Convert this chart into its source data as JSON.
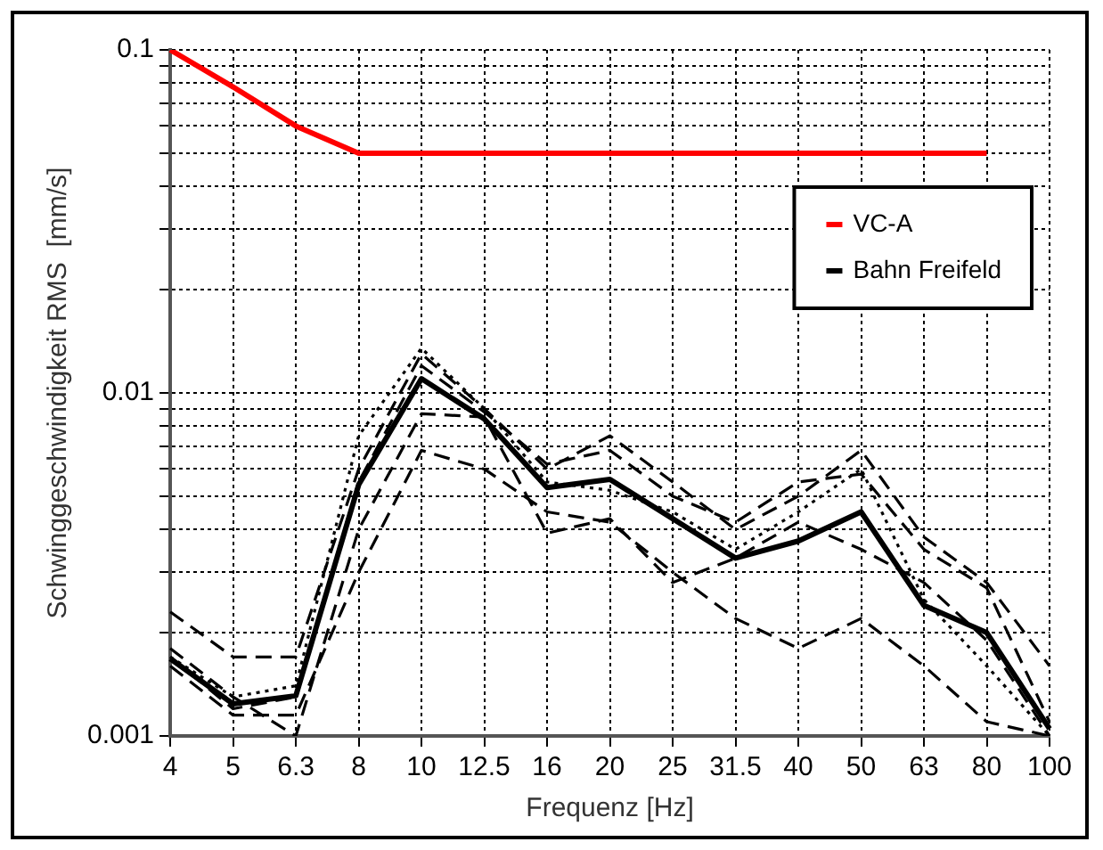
{
  "chart_data": {
    "type": "line",
    "xlabel": "Frequenz [Hz]",
    "ylabel": "Schwinggeschwindigkeit RMS  [mm/s]",
    "categories": [
      "4",
      "5",
      "6.3",
      "8",
      "10",
      "12.5",
      "16",
      "20",
      "25",
      "31.5",
      "40",
      "50",
      "63",
      "80",
      "100"
    ],
    "log": "y",
    "ylim": [
      0.001,
      0.1
    ],
    "yticks": [
      0.001,
      {
        "value": 0.002,
        "label": null
      },
      {
        "value": 0.003,
        "label": null
      },
      {
        "value": 0.004,
        "label": null
      },
      {
        "value": 0.005,
        "label": null
      },
      {
        "value": 0.006,
        "label": null
      },
      {
        "value": 0.007,
        "label": null
      },
      {
        "value": 0.008,
        "label": null
      },
      {
        "value": 0.009,
        "label": null
      },
      0.01,
      {
        "value": 0.02,
        "label": null
      },
      {
        "value": 0.03,
        "label": null
      },
      {
        "value": 0.04,
        "label": null
      },
      {
        "value": 0.05,
        "label": null
      },
      {
        "value": 0.06,
        "label": null
      },
      {
        "value": 0.07,
        "label": null
      },
      {
        "value": 0.08,
        "label": null
      },
      {
        "value": 0.09,
        "label": null
      },
      0.1
    ],
    "grid": true,
    "legend": "top right",
    "marker": "none",
    "series": [
      {
        "name": "VC-A",
        "color": "#ff0000",
        "line_style": "solid",
        "values": [
          0.1,
          0.078,
          0.06,
          0.05,
          0.05,
          0.05,
          0.05,
          0.05,
          0.05,
          0.05,
          0.05,
          0.05,
          0.05,
          0.05,
          null
        ]
      },
      {
        "color": "#000000",
        "line_style": "dashed",
        "values": [
          0.0023,
          0.0017,
          0.0017,
          0.006,
          0.013,
          0.009,
          0.006,
          0.0075,
          0.0055,
          0.004,
          0.005,
          0.0068,
          0.0038,
          0.0028,
          0.0016
        ]
      },
      {
        "color": "#000000",
        "line_style": "dashed",
        "values": [
          0.0016,
          0.00115,
          0.00115,
          0.003,
          0.0068,
          0.006,
          0.0045,
          0.0042,
          0.003,
          0.0022,
          0.0018,
          0.0022,
          0.0016,
          0.0011,
          0.001
        ]
      },
      {
        "color": "#000000",
        "line_style": "dotted",
        "values": [
          0.0017,
          0.0013,
          0.0014,
          0.0075,
          0.0135,
          0.009,
          0.0055,
          0.0052,
          0.0045,
          0.0035,
          0.0045,
          0.006,
          0.0025,
          0.0016,
          0.001
        ]
      },
      {
        "color": "#000000",
        "line_style": "dashed",
        "values": [
          0.0018,
          0.0013,
          0.001,
          0.004,
          0.0087,
          0.0085,
          0.0039,
          0.0043,
          0.0028,
          0.0033,
          0.0042,
          0.0035,
          0.0028,
          0.0019,
          0.001
        ]
      },
      {
        "color": "#000000",
        "line_style": "dashed",
        "values": [
          0.0017,
          0.0012,
          0.0013,
          0.0055,
          0.012,
          0.0088,
          0.0062,
          0.0068,
          0.005,
          0.0042,
          0.0055,
          0.0058,
          0.0035,
          0.0027,
          0.0011
        ]
      },
      {
        "name": "Bahn Freifeld",
        "color": "#000000",
        "line_style": "solid",
        "values": [
          0.00168,
          0.00124,
          0.00131,
          0.0054,
          0.011,
          0.0084,
          0.0053,
          0.0056,
          0.0043,
          0.0033,
          0.0037,
          0.0045,
          0.0024,
          0.002,
          0.00105
        ]
      }
    ]
  }
}
